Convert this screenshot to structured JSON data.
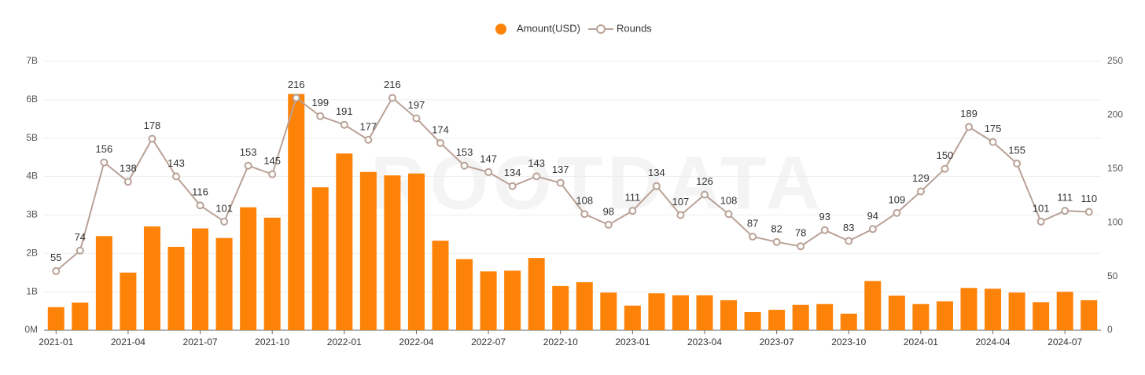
{
  "chart_data": {
    "type": "bar-line",
    "watermark": "ROOTDATA",
    "categories": [
      "2021-01",
      null,
      null,
      "2021-04",
      null,
      null,
      "2021-07",
      null,
      null,
      "2021-10",
      null,
      null,
      "2022-01",
      null,
      null,
      "2022-04",
      null,
      null,
      "2022-07",
      null,
      null,
      "2022-10",
      null,
      null,
      "2023-01",
      null,
      null,
      "2023-04",
      null,
      null,
      "2023-07",
      null,
      null,
      "2023-10",
      null,
      null,
      "2024-01",
      null,
      null,
      "2024-04",
      null,
      null,
      "2024-07",
      null
    ],
    "series": [
      {
        "name": "Amount(USD)",
        "type": "bar",
        "color": "#fd8208",
        "values": [
          600000000,
          720000000,
          2450000000,
          1500000000,
          2700000000,
          2170000000,
          2650000000,
          2400000000,
          3200000000,
          2930000000,
          6150000000,
          3720000000,
          4600000000,
          4120000000,
          4030000000,
          4080000000,
          2330000000,
          1850000000,
          1530000000,
          1550000000,
          1880000000,
          1150000000,
          1250000000,
          980000000,
          640000000,
          960000000,
          910000000,
          910000000,
          780000000,
          470000000,
          530000000,
          660000000,
          680000000,
          430000000,
          1280000000,
          900000000,
          680000000,
          750000000,
          1100000000,
          1080000000,
          980000000,
          730000000,
          1000000000,
          780000000
        ]
      },
      {
        "name": "Rounds",
        "type": "line",
        "axis": "y2",
        "color": "#b9a297",
        "values": [
          55,
          74,
          156,
          138,
          178,
          143,
          116,
          101,
          153,
          145,
          216,
          199,
          191,
          177,
          216,
          197,
          174,
          153,
          147,
          134,
          143,
          137,
          108,
          98,
          111,
          134,
          107,
          126,
          108,
          87,
          82,
          78,
          93,
          83,
          94,
          109,
          129,
          150,
          189,
          175,
          155,
          101,
          111,
          110
        ]
      }
    ],
    "ylim": [
      0,
      7000000000
    ],
    "yticks": [
      {
        "value": 0,
        "label": "0M"
      },
      {
        "value": 1000000000,
        "label": "1B"
      },
      {
        "value": 2000000000,
        "label": "2B"
      },
      {
        "value": 3000000000,
        "label": "3B"
      },
      {
        "value": 4000000000,
        "label": "4B"
      },
      {
        "value": 5000000000,
        "label": "5B"
      },
      {
        "value": 6000000000,
        "label": "6B"
      },
      {
        "value": 7000000000,
        "label": "7B"
      }
    ],
    "y2lim": [
      0,
      250
    ],
    "y2ticks": [
      0,
      50,
      100,
      150,
      200,
      250
    ],
    "grid": true,
    "legend": "top"
  }
}
